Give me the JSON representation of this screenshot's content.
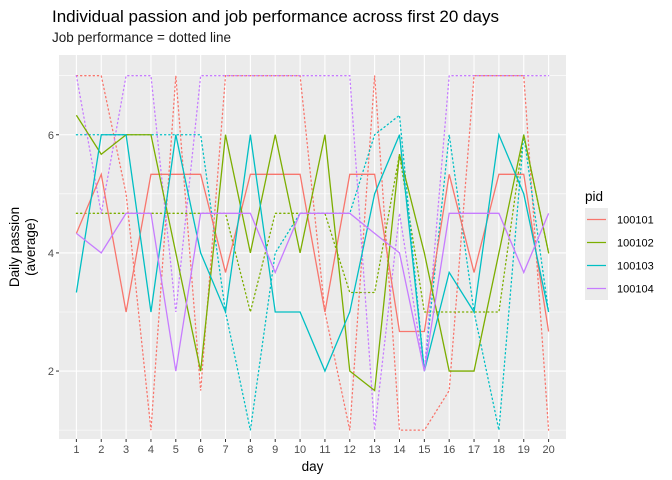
{
  "chart_data": {
    "type": "line",
    "title": "Individual passion and job performance across first 20 days",
    "subtitle": "Job performance = dotted line",
    "xlabel": "day",
    "ylabel": [
      "Daily passion",
      "(average)"
    ],
    "x": [
      1,
      2,
      3,
      4,
      5,
      6,
      7,
      8,
      9,
      10,
      11,
      12,
      13,
      14,
      15,
      16,
      17,
      18,
      19,
      20
    ],
    "xlim": [
      0.3,
      20.7
    ],
    "ylim": [
      0.85,
      7.35
    ],
    "yticks": [
      2,
      4,
      6
    ],
    "grid": true,
    "legend": {
      "title": "pid",
      "position": "right"
    },
    "series": [
      {
        "name": "100101",
        "color": "#F8766D",
        "passion": [
          4.33,
          5.33,
          3,
          5.33,
          5.33,
          5.33,
          3.67,
          5.33,
          5.33,
          5.33,
          3,
          5.33,
          5.33,
          2.67,
          2.67,
          5.33,
          3.67,
          5.33,
          5.33,
          2.67
        ],
        "performance": [
          7,
          7,
          5,
          1,
          7,
          1.67,
          7,
          7,
          7,
          7,
          3,
          1,
          7,
          1,
          1,
          1.67,
          7,
          7,
          7,
          1
        ]
      },
      {
        "name": "100102",
        "color": "#7CAE00",
        "passion": [
          6.33,
          5.67,
          6,
          6,
          4,
          2,
          6,
          4,
          6,
          4,
          6,
          2,
          1.67,
          5.67,
          4,
          2,
          2,
          4,
          6,
          4
        ],
        "performance": [
          4.67,
          4.67,
          4.67,
          4.67,
          4.67,
          4.67,
          4.67,
          3,
          4.67,
          4.67,
          4.67,
          3.33,
          3.33,
          5.67,
          3,
          3,
          3,
          3,
          6,
          4
        ]
      },
      {
        "name": "100103",
        "color": "#00BFC4",
        "passion": [
          3.33,
          6,
          6,
          3,
          6,
          4,
          3,
          6,
          3,
          3,
          2,
          3,
          5,
          6,
          2,
          3.67,
          3,
          6,
          5,
          3
        ],
        "performance": [
          6,
          6,
          6,
          6,
          6,
          6,
          3,
          1,
          4,
          4.67,
          4.67,
          4.67,
          6,
          6.33,
          2,
          6,
          3,
          1,
          6,
          3
        ]
      },
      {
        "name": "100104",
        "color": "#C77CFF",
        "passion": [
          4.33,
          4,
          4.67,
          4.67,
          2,
          4.67,
          4.67,
          4.67,
          3.67,
          4.67,
          4.67,
          4.67,
          4.33,
          4,
          2,
          4.67,
          4.67,
          4.67,
          3.67,
          4.67
        ],
        "performance": [
          7,
          4.67,
          7,
          7,
          3,
          7,
          7,
          7,
          7,
          7,
          7,
          7,
          1,
          4.67,
          2,
          7,
          7,
          7,
          7,
          7
        ]
      }
    ]
  }
}
